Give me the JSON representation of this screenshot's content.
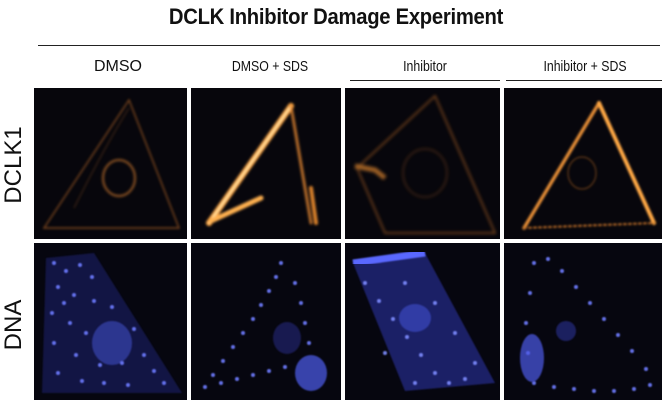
{
  "title": "DCLK Inhibitor Damage Experiment",
  "columns": [
    "DMSO",
    "DMSO + SDS",
    "Inhibitor",
    "Inhibitor + SDS"
  ],
  "rows": [
    "DCLK1",
    "DNA"
  ],
  "colors": {
    "dclk1_stain": "#ff9a2a",
    "dna_stain": "#4a5cff",
    "panel_background": "#07060c"
  }
}
